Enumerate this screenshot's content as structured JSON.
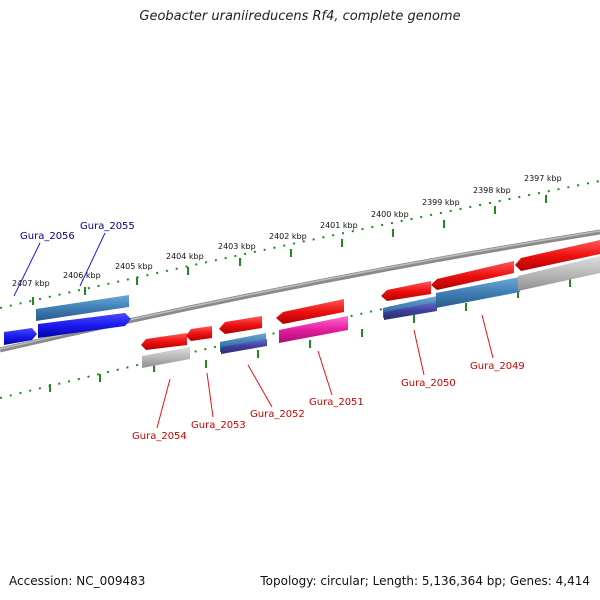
{
  "title": "Geobacter uraniireducens Rf4, complete genome",
  "footer": {
    "accession": "Accession: NC_009483",
    "summary": "Topology: circular; Length: 5,136,364 bp; Genes: 4,414"
  },
  "scale_ticks": [
    "2407 kbp",
    "2406 kbp",
    "2405 kbp",
    "2404 kbp",
    "2403 kbp",
    "2402 kbp",
    "2401 kbp",
    "2400 kbp",
    "2399 kbp",
    "2398 kbp",
    "2397 kbp"
  ],
  "gene_labels_top": [
    "Gura_2056",
    "Gura_2055"
  ],
  "gene_labels_bottom": [
    "Gura_2054",
    "Gura_2053",
    "Gura_2052",
    "Gura_2051",
    "Gura_2050",
    "Gura_2049"
  ],
  "colors": {
    "forward_gene": "#1a1aee",
    "reverse_gene": "#ee1111",
    "cds_blue": "#3f7fb5",
    "cds_purple": "#3f3f99",
    "cds_magenta": "#e61ea0",
    "cds_gray": "#b8b8b8",
    "backbone": "#8a8a8a",
    "tick": "#1f8a1f",
    "label_top": "#00008b",
    "label_bottom": "#cc0000"
  }
}
